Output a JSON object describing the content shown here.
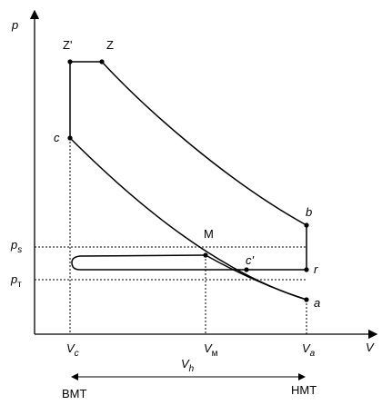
{
  "axes": {
    "y": "p",
    "x": "V"
  },
  "points": [
    {
      "label": "Z'"
    },
    {
      "label": "Z"
    },
    {
      "label": "c"
    },
    {
      "label": "b"
    },
    {
      "label": "r"
    },
    {
      "label": "a"
    },
    {
      "label": "M"
    },
    {
      "label": "c'"
    }
  ],
  "pressure_levels": [
    {
      "symbol": "p",
      "sub": "s"
    },
    {
      "symbol": "p",
      "sub": "т"
    }
  ],
  "volumes": [
    {
      "symbol": "V",
      "sub": "c"
    },
    {
      "symbol": "V",
      "sub": "м"
    },
    {
      "symbol": "V",
      "sub": "a"
    }
  ],
  "stroke": {
    "symbol": "V",
    "sub": "h"
  },
  "dead_centers": [
    "BMT",
    "HMT"
  ]
}
